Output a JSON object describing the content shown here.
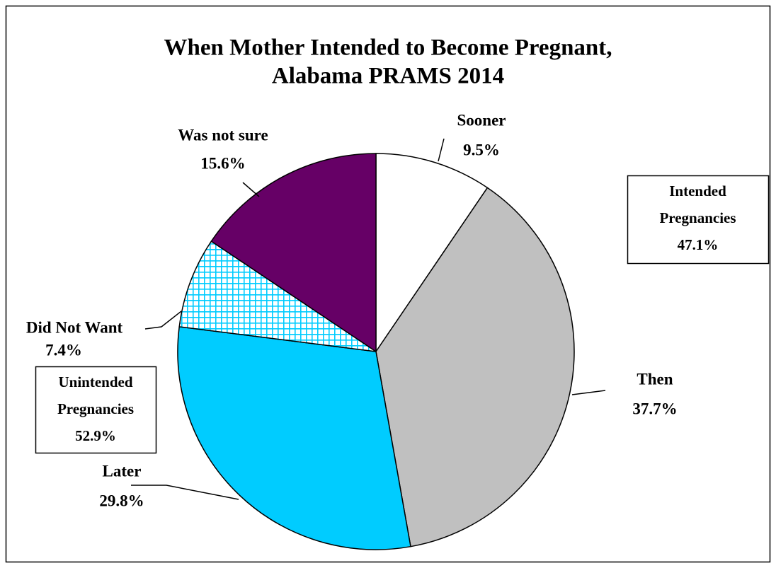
{
  "chart_data": {
    "type": "pie",
    "title": [
      "When Mother Intended to Become Pregnant,",
      "Alabama PRAMS 2014"
    ],
    "categories": [
      "Sooner",
      "Then",
      "Later",
      "Did Not Want",
      "Was not sure"
    ],
    "values": [
      9.5,
      37.7,
      29.8,
      7.4,
      15.6
    ],
    "value_labels": [
      "9.5%",
      "37.7%",
      "29.8%",
      "7.4%",
      "15.6%"
    ],
    "colors": [
      "#ffffff",
      "#c0c0c0",
      "#00ccff",
      "#00ccff",
      "#660066"
    ],
    "patterns": [
      null,
      null,
      null,
      "grid",
      null
    ],
    "annotations": [
      {
        "lines": [
          "Intended",
          "Pregnancies",
          "47.1%"
        ]
      },
      {
        "lines": [
          "Unintended",
          "Pregnancies",
          "52.9%"
        ]
      }
    ]
  }
}
